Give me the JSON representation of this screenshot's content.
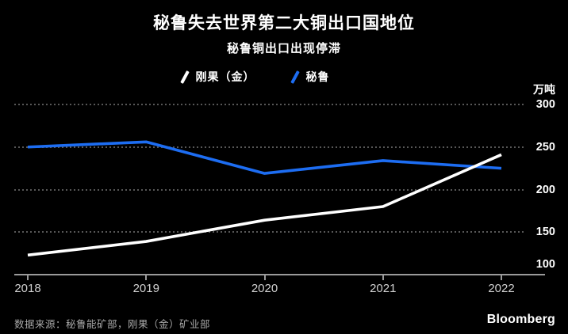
{
  "header": {
    "title": "秘鲁失去世界第二大铜出口国地位",
    "subtitle": "秘鲁铜出口出现停滞"
  },
  "source": "数据来源：秘鲁能矿部，刚果（金）矿业部",
  "brand": "Bloomberg",
  "colors": {
    "background": "#000000",
    "congo_line": "#ffffff",
    "peru_line": "#1d6df2",
    "grid_dots": "#575757",
    "axis": "#9a9a9a",
    "x_tick_label": "#d0d0d0",
    "source_text": "#a8a8a8"
  },
  "chart_data": {
    "type": "line",
    "title": "秘鲁失去世界第二大铜出口国地位",
    "subtitle": "秘鲁铜出口出现停滞",
    "unit_label": "万吨",
    "categories": [
      "2018",
      "2019",
      "2020",
      "2021",
      "2022"
    ],
    "series": [
      {
        "name": "刚果（金）",
        "color": "#ffffff",
        "values": [
          123,
          139,
          164,
          180,
          241
        ]
      },
      {
        "name": "秘鲁",
        "color": "#1d6df2",
        "values": [
          250,
          256,
          219,
          234,
          225
        ]
      }
    ],
    "ylim": [
      100,
      300
    ],
    "yticks": [
      100,
      150,
      200,
      250,
      300
    ],
    "grid": "horizontal dotted, labels on right",
    "legend_position": "top-center"
  }
}
